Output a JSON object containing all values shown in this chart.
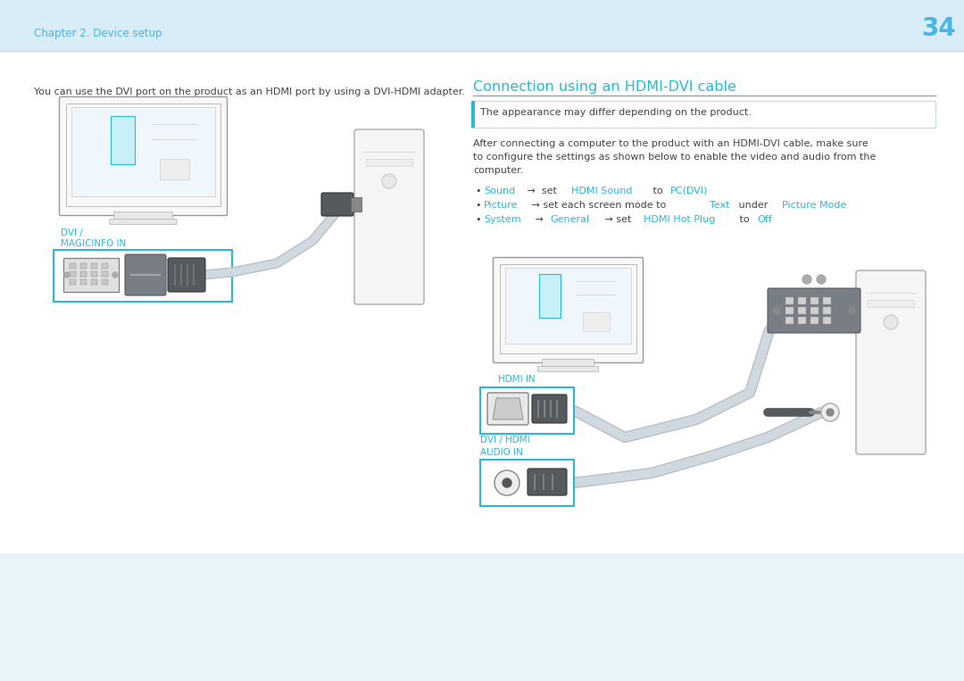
{
  "bg_color": "#e8f3fa",
  "header_bg": "#d8edf7",
  "page_number": "34",
  "chapter_text": "Chapter 2. Device setup",
  "header_text_color": "#4ab3e8",
  "cyan_color": "#2ab8d8",
  "body_text_color": "#444444",
  "dark_connector": "#555a5f",
  "medium_connector": "#787e84",
  "light_connector": "#a0a6ac",
  "cable_color": "#b8c0c8",
  "monitor_outline": "#aaaaaa",
  "monitor_fill": "#f8f8f8",
  "screen_fill": "#eef8ff",
  "pc_fill": "#f5f5f5",
  "pc_outline": "#aaaaaa",
  "left_intro_text": "You can use the DVI port on the product as an HDMI port by using a DVI-HDMI adapter.",
  "right_title": "Connection using an HDMI-DVI cable",
  "note_text": "The appearance may differ depending on the product.",
  "body_text_line1": "After connecting a computer to the product with an HDMI-DVI cable, make sure",
  "body_text_line2": "to configure the settings as shown below to enable the video and audio from the",
  "body_text_line3": "computer.",
  "bullet1_cyan1": "Sound",
  "bullet1_normal1": " →  set ",
  "bullet1_cyan2": "HDMI Sound",
  "bullet1_normal2": " to ",
  "bullet1_cyan3": "PC(DVI)",
  "bullet2_cyan1": "Picture",
  "bullet2_normal1": " → set each screen mode to ",
  "bullet2_cyan2": "Text",
  "bullet2_normal2": " under ",
  "bullet2_cyan3": "Picture Mode",
  "bullet3_cyan1": "System",
  "bullet3_normal1": " → ",
  "bullet3_cyan2": "General",
  "bullet3_normal2": " → set ",
  "bullet3_cyan3": "HDMI Hot Plug",
  "bullet3_normal3": " to ",
  "bullet3_cyan4": "Off",
  "label_dvi": "DVI /",
  "label_magicinfo": "MAGICINFO IN",
  "label_hdmi_in": "HDMI IN",
  "label_dvi_hdmi": "DVI / HDMI",
  "label_audio_in": "AUDIO IN"
}
